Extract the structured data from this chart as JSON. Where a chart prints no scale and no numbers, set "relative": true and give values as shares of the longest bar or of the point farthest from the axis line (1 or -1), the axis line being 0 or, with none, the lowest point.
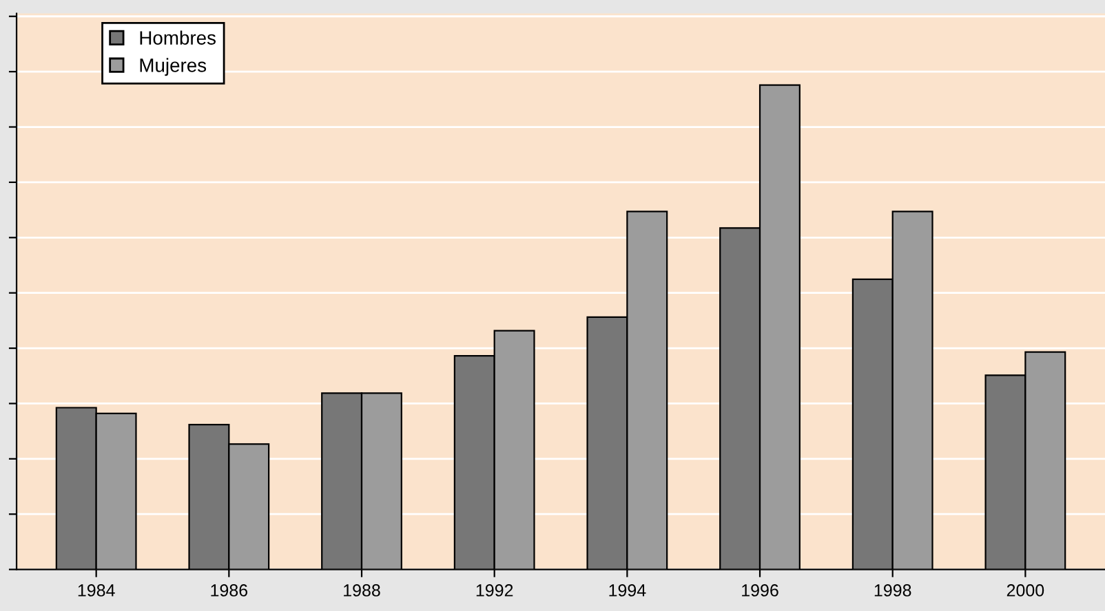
{
  "chart_data": {
    "type": "bar",
    "relative": true,
    "categories": [
      "1984",
      "1986",
      "1988",
      "1992",
      "1994",
      "1996",
      "1998",
      "2000"
    ],
    "series": [
      {
        "name": "Hombres",
        "color": "#777777",
        "values": [
          0.334,
          0.299,
          0.364,
          0.441,
          0.521,
          0.705,
          0.599,
          0.401
        ]
      },
      {
        "name": "Mujeres",
        "color": "#9c9c9c",
        "values": [
          0.322,
          0.259,
          0.364,
          0.493,
          0.739,
          1,
          0.739,
          0.449
        ]
      }
    ],
    "grid": "y",
    "legend": "top left"
  }
}
